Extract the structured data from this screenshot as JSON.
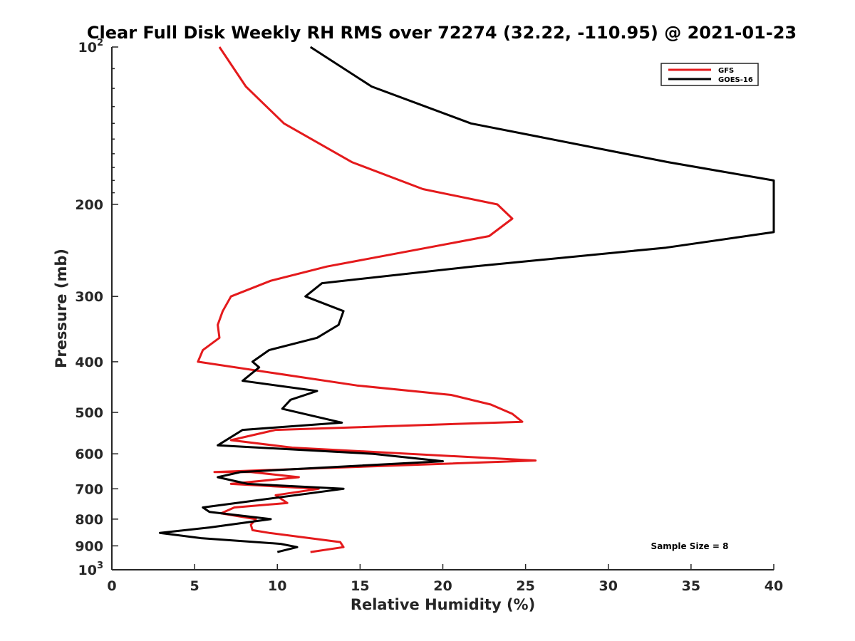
{
  "chart_data": {
    "type": "line",
    "title": "Clear Full Disk Weekly RH RMS over 72274 (32.22, -110.95) @ 2021-01-23",
    "xlabel": "Relative Humidity (%)",
    "ylabel": "Pressure (mb)",
    "xlim": [
      0,
      40
    ],
    "ylim": [
      100,
      1000
    ],
    "yscale": "log",
    "y_reversed": true,
    "grid": false,
    "legend_position": "top-right",
    "x_ticks": [
      "0",
      "5",
      "10",
      "15",
      "20",
      "25",
      "30",
      "35",
      "40"
    ],
    "y_ticks": [
      {
        "value": 100,
        "base": "10",
        "exp": "2"
      },
      {
        "value": 200,
        "base": "200",
        "exp": ""
      },
      {
        "value": 300,
        "base": "300",
        "exp": ""
      },
      {
        "value": 400,
        "base": "400",
        "exp": ""
      },
      {
        "value": 500,
        "base": "500",
        "exp": ""
      },
      {
        "value": 600,
        "base": "600",
        "exp": ""
      },
      {
        "value": 700,
        "base": "700",
        "exp": ""
      },
      {
        "value": 800,
        "base": "800",
        "exp": ""
      },
      {
        "value": 900,
        "base": "900",
        "exp": ""
      },
      {
        "value": 1000,
        "base": "10",
        "exp": "3"
      }
    ],
    "annotation": "Sample Size = 8",
    "series": [
      {
        "name": "GFS",
        "color": "#e41a1c",
        "points": [
          [
            6.5,
            100
          ],
          [
            8.1,
            119
          ],
          [
            10.4,
            140
          ],
          [
            14.5,
            166
          ],
          [
            18.8,
            187
          ],
          [
            23.3,
            200
          ],
          [
            24.2,
            213
          ],
          [
            22.8,
            230
          ],
          [
            13.0,
            263
          ],
          [
            9.6,
            280
          ],
          [
            7.2,
            300
          ],
          [
            6.7,
            320
          ],
          [
            6.4,
            340
          ],
          [
            6.5,
            360
          ],
          [
            5.5,
            380
          ],
          [
            5.2,
            400
          ],
          [
            14.8,
            444
          ],
          [
            20.5,
            463
          ],
          [
            22.9,
            483
          ],
          [
            24.2,
            503
          ],
          [
            24.8,
            521
          ],
          [
            9.9,
            540
          ],
          [
            7.2,
            565
          ],
          [
            10.9,
            584
          ],
          [
            25.6,
            618
          ],
          [
            6.2,
            650
          ],
          [
            8.4,
            650
          ],
          [
            11.3,
            665
          ],
          [
            7.2,
            685
          ],
          [
            12.5,
            700
          ],
          [
            9.9,
            720
          ],
          [
            10.6,
            745
          ],
          [
            7.4,
            760
          ],
          [
            6.6,
            780
          ],
          [
            8.7,
            800
          ],
          [
            8.4,
            820
          ],
          [
            8.5,
            840
          ],
          [
            9.5,
            850
          ],
          [
            13.8,
            885
          ],
          [
            14.0,
            905
          ],
          [
            12.0,
            925
          ]
        ]
      },
      {
        "name": "GOES-16",
        "color": "#000000",
        "points": [
          [
            12.0,
            100
          ],
          [
            15.7,
            119
          ],
          [
            21.7,
            140
          ],
          [
            33.6,
            166
          ],
          [
            40.0,
            180
          ],
          [
            40.0,
            226
          ],
          [
            33.5,
            242
          ],
          [
            21.8,
            263
          ],
          [
            12.7,
            283
          ],
          [
            11.7,
            300
          ],
          [
            14.0,
            320
          ],
          [
            13.7,
            340
          ],
          [
            12.4,
            360
          ],
          [
            9.5,
            380
          ],
          [
            8.5,
            400
          ],
          [
            8.9,
            410
          ],
          [
            7.9,
            435
          ],
          [
            12.4,
            455
          ],
          [
            10.8,
            473
          ],
          [
            10.3,
            492
          ],
          [
            13.9,
            523
          ],
          [
            7.9,
            540
          ],
          [
            6.4,
            578
          ],
          [
            15.8,
            600
          ],
          [
            20.0,
            620
          ],
          [
            7.8,
            650
          ],
          [
            6.4,
            665
          ],
          [
            8.2,
            685
          ],
          [
            14.0,
            700
          ],
          [
            11.1,
            720
          ],
          [
            5.5,
            760
          ],
          [
            5.9,
            775
          ],
          [
            9.6,
            800
          ],
          [
            5.9,
            830
          ],
          [
            2.9,
            850
          ],
          [
            5.4,
            870
          ],
          [
            10.2,
            892
          ],
          [
            11.2,
            905
          ],
          [
            10.0,
            925
          ]
        ]
      }
    ]
  }
}
